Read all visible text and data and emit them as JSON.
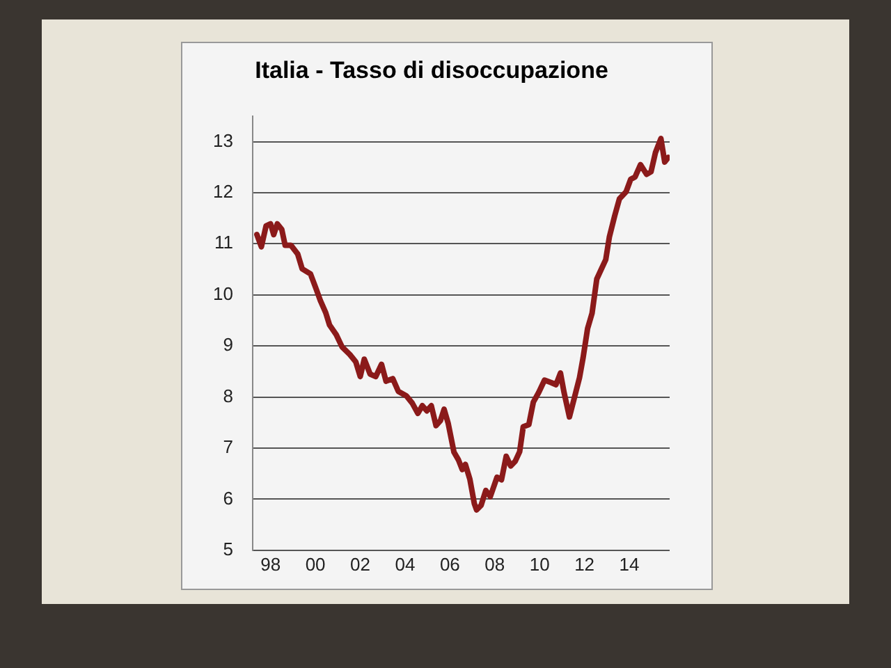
{
  "chart_data": {
    "type": "line",
    "title": "Italia - Tasso di disoccupazione",
    "x": [
      1997.39,
      1997.59,
      1997.8,
      1998.0,
      1998.14,
      1998.3,
      1998.5,
      1998.65,
      1998.91,
      1999.21,
      1999.41,
      1999.78,
      2000.02,
      2000.22,
      2000.46,
      2000.63,
      2000.93,
      2001.19,
      2001.54,
      2001.8,
      2002.0,
      2002.18,
      2002.44,
      2002.69,
      2002.95,
      2003.15,
      2003.45,
      2003.7,
      2004.06,
      2004.32,
      2004.57,
      2004.77,
      2004.97,
      2005.17,
      2005.38,
      2005.58,
      2005.74,
      2005.92,
      2006.18,
      2006.38,
      2006.55,
      2006.69,
      2006.89,
      2007.09,
      2007.19,
      2007.39,
      2007.6,
      2007.8,
      2008.1,
      2008.3,
      2008.51,
      2008.71,
      2008.91,
      2009.11,
      2009.27,
      2009.52,
      2009.72,
      2009.96,
      2010.22,
      2010.53,
      2010.73,
      2010.93,
      2011.09,
      2011.33,
      2011.53,
      2011.78,
      2011.94,
      2012.14,
      2012.34,
      2012.55,
      2012.75,
      2012.95,
      2013.11,
      2013.35,
      2013.56,
      2013.86,
      2014.06,
      2014.26,
      2014.5,
      2014.77,
      2014.97,
      2015.17,
      2015.41,
      2015.58,
      2015.74
    ],
    "series": [
      {
        "color": "#8b1a1a",
        "values": [
          11.18,
          10.94,
          11.35,
          11.39,
          11.18,
          11.39,
          11.28,
          10.97,
          10.97,
          10.8,
          10.51,
          10.41,
          10.13,
          9.89,
          9.65,
          9.41,
          9.22,
          8.98,
          8.83,
          8.69,
          8.4,
          8.74,
          8.45,
          8.4,
          8.64,
          8.31,
          8.36,
          8.11,
          8.02,
          7.88,
          7.68,
          7.83,
          7.73,
          7.83,
          7.44,
          7.54,
          7.76,
          7.49,
          6.92,
          6.77,
          6.58,
          6.68,
          6.39,
          5.91,
          5.79,
          5.88,
          6.17,
          6.05,
          6.43,
          6.38,
          6.84,
          6.65,
          6.74,
          6.93,
          7.42,
          7.46,
          7.9,
          8.09,
          8.33,
          8.28,
          8.24,
          8.47,
          8.09,
          7.61,
          7.95,
          8.38,
          8.77,
          9.34,
          9.64,
          10.31,
          10.5,
          10.69,
          11.13,
          11.55,
          11.88,
          12.02,
          12.26,
          12.31,
          12.55,
          12.36,
          12.41,
          12.79,
          13.06,
          12.6,
          12.69
        ]
      }
    ],
    "xlim": [
      1997.2,
      2015.8
    ],
    "xticks": [
      {
        "value": 1998,
        "label": "98"
      },
      {
        "value": 2000,
        "label": "00"
      },
      {
        "value": 2002,
        "label": "02"
      },
      {
        "value": 2004,
        "label": "04"
      },
      {
        "value": 2006,
        "label": "06"
      },
      {
        "value": 2008,
        "label": "08"
      },
      {
        "value": 2010,
        "label": "10"
      },
      {
        "value": 2012,
        "label": "12"
      },
      {
        "value": 2014,
        "label": "14"
      }
    ],
    "ylim": [
      5,
      13.5
    ],
    "yticks": [
      5,
      6,
      7,
      8,
      9,
      10,
      11,
      12,
      13
    ],
    "grid": "y",
    "marker": "none",
    "line_style": "solid",
    "legend": false
  }
}
